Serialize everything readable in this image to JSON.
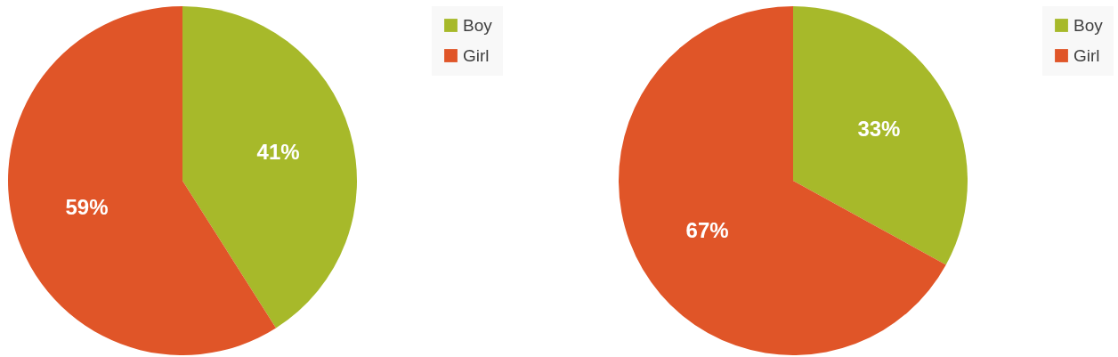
{
  "chart_data": [
    {
      "type": "pie",
      "categories": [
        "Boy",
        "Girl"
      ],
      "values": [
        41,
        59
      ],
      "colors": [
        "#a7b92a",
        "#e05528"
      ],
      "value_labels": [
        "41%",
        "59%"
      ],
      "legend": "right"
    },
    {
      "type": "pie",
      "categories": [
        "Boy",
        "Girl"
      ],
      "values": [
        33,
        67
      ],
      "colors": [
        "#a7b92a",
        "#e05528"
      ],
      "value_labels": [
        "33%",
        "67%"
      ],
      "legend": "right"
    }
  ]
}
